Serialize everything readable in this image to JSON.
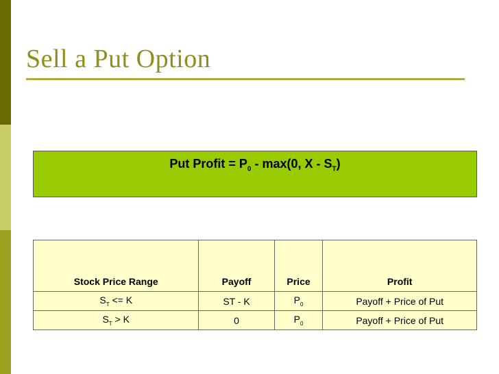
{
  "title": "Sell a Put Option",
  "formula": {
    "prefix": "Put Profit = P",
    "sub1": "0",
    "middle": " - max(0, X - S",
    "sub2": "T",
    "suffix": ")"
  },
  "table": {
    "headers": [
      "Stock Price Range",
      "Payoff",
      "Price",
      "Profit"
    ],
    "rows": [
      {
        "range_base": "S",
        "range_sub": "T",
        "range_rest": " <= K",
        "payoff": "ST - K",
        "price_base": "P",
        "price_sub": "0",
        "profit": "Payoff + Price of Put"
      },
      {
        "range_base": "S",
        "range_sub": "T",
        "range_rest": " > K",
        "payoff": "0",
        "price_base": "P",
        "price_sub": "0",
        "profit": "Payoff + Price of Put"
      }
    ]
  },
  "colors": {
    "side_bar_dark": "#6b6b00",
    "side_bar_light": "#c8cf68",
    "side_bar_mid": "#9aa020",
    "title": "#8f8f1c",
    "formula_bg": "#99cc00",
    "table_bg": "#ffffcc"
  }
}
